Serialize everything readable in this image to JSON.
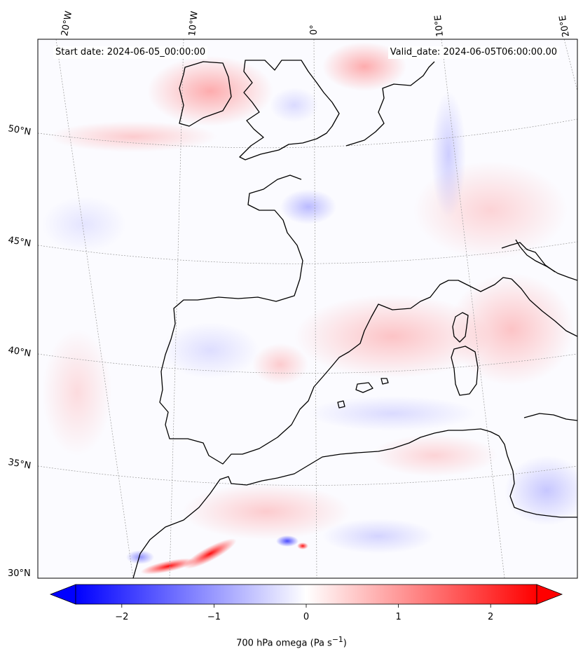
{
  "map": {
    "start_label": "Start date: 2024-06-05_00:00:00",
    "valid_label": "Valid_date: 2024-06-05T06:00:00.00",
    "longitude_labels": [
      "20°W",
      "10°W",
      "0°",
      "10°E",
      "20°E"
    ],
    "latitude_labels": [
      "50°N",
      "45°N",
      "40°N",
      "35°N",
      "30°N"
    ],
    "field": "700 hPa omega",
    "ocean_color": "#fafaff"
  },
  "colorbar": {
    "ticks": [
      -2,
      -1,
      0,
      1,
      2
    ],
    "tick_labels": [
      "−2",
      "−1",
      "0",
      "1",
      "2"
    ],
    "range": [
      -2.5,
      2.5
    ],
    "colormap": "bwr",
    "colors": {
      "negative": "#0000ff",
      "zero": "#ffffff",
      "positive": "#ff0000"
    },
    "extend": "both",
    "label_html": "700 hPa omega (Pa s<sup>−1</sup>)"
  }
}
